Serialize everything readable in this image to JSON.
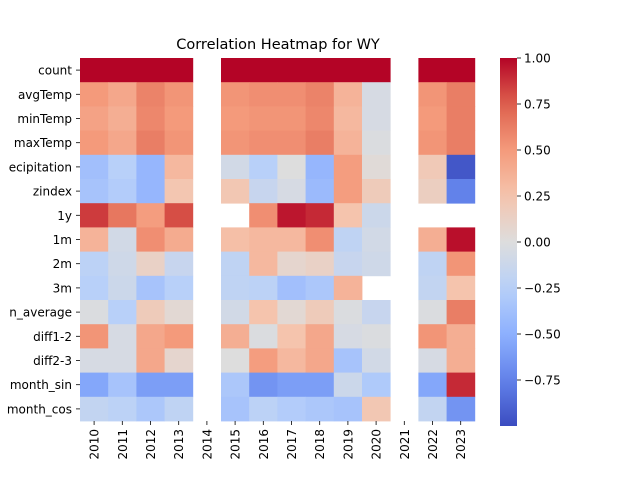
{
  "chart_data": {
    "type": "heatmap",
    "title": "Correlation Heatmap for WY",
    "x": [
      "2010",
      "2011",
      "2012",
      "2013",
      "2014",
      "2015",
      "2016",
      "2017",
      "2018",
      "2019",
      "2020",
      "2021",
      "2022",
      "2023"
    ],
    "y": [
      "count",
      "avgTemp",
      "minTemp",
      "maxTemp",
      "ecipitation",
      "zindex",
      "1y",
      "1m",
      "2m",
      "3m",
      "n_average",
      "diff1-2",
      "diff2-3",
      "month_sin",
      "month_cos"
    ],
    "values": [
      [
        1.0,
        1.0,
        1.0,
        1.0,
        null,
        1.0,
        1.0,
        1.0,
        1.0,
        1.0,
        1.0,
        null,
        1.0,
        1.0
      ],
      [
        0.5,
        0.42,
        0.6,
        0.52,
        null,
        0.52,
        0.55,
        0.55,
        0.6,
        0.35,
        -0.05,
        null,
        0.52,
        0.62
      ],
      [
        0.45,
        0.38,
        0.58,
        0.5,
        null,
        0.5,
        0.52,
        0.52,
        0.58,
        0.32,
        -0.05,
        null,
        0.5,
        0.62
      ],
      [
        0.5,
        0.42,
        0.62,
        0.52,
        null,
        0.52,
        0.55,
        0.55,
        0.62,
        0.35,
        -0.02,
        null,
        0.52,
        0.62
      ],
      [
        -0.38,
        -0.25,
        -0.45,
        0.32,
        null,
        -0.08,
        -0.25,
        0.0,
        -0.45,
        0.48,
        0.03,
        null,
        0.2,
        -0.95
      ],
      [
        -0.35,
        -0.28,
        -0.45,
        0.23,
        null,
        0.22,
        -0.15,
        -0.05,
        -0.42,
        0.48,
        0.18,
        null,
        0.15,
        -0.75
      ],
      [
        0.85,
        0.65,
        0.48,
        0.8,
        null,
        null,
        0.55,
        0.95,
        0.9,
        0.25,
        -0.12,
        null,
        null,
        null
      ],
      [
        0.35,
        -0.08,
        0.55,
        0.4,
        null,
        0.28,
        0.32,
        0.32,
        0.55,
        -0.2,
        -0.08,
        null,
        0.38,
        0.97
      ],
      [
        -0.22,
        -0.1,
        0.12,
        -0.15,
        null,
        -0.2,
        0.32,
        0.08,
        0.12,
        -0.15,
        -0.1,
        null,
        -0.2,
        0.52
      ],
      [
        -0.25,
        -0.12,
        -0.35,
        -0.25,
        null,
        -0.2,
        -0.22,
        -0.38,
        -0.32,
        0.35,
        null,
        null,
        -0.18,
        0.25
      ],
      [
        -0.02,
        -0.25,
        0.18,
        0.05,
        null,
        -0.08,
        0.25,
        0.05,
        0.18,
        -0.02,
        -0.15,
        null,
        -0.02,
        0.62
      ],
      [
        0.52,
        -0.05,
        0.42,
        0.5,
        null,
        0.38,
        -0.02,
        0.25,
        0.42,
        -0.05,
        -0.02,
        null,
        0.52,
        0.38
      ],
      [
        -0.05,
        -0.05,
        0.42,
        0.08,
        null,
        0.0,
        0.48,
        0.32,
        0.42,
        -0.35,
        -0.08,
        null,
        -0.05,
        0.38
      ],
      [
        -0.55,
        -0.35,
        -0.6,
        -0.6,
        null,
        -0.32,
        -0.65,
        -0.6,
        -0.6,
        -0.12,
        -0.3,
        null,
        -0.55,
        0.9
      ],
      [
        -0.18,
        -0.22,
        -0.32,
        -0.2,
        null,
        -0.35,
        -0.22,
        -0.28,
        -0.32,
        -0.35,
        0.22,
        null,
        -0.18,
        -0.65
      ]
    ],
    "vmin": -1.0,
    "vmax": 1.0,
    "colormap": "coolwarm",
    "colorbar_ticks": [
      "-0.75",
      "-0.50",
      "-0.25",
      "0.00",
      "0.25",
      "0.50",
      "0.75",
      "1.00"
    ]
  }
}
